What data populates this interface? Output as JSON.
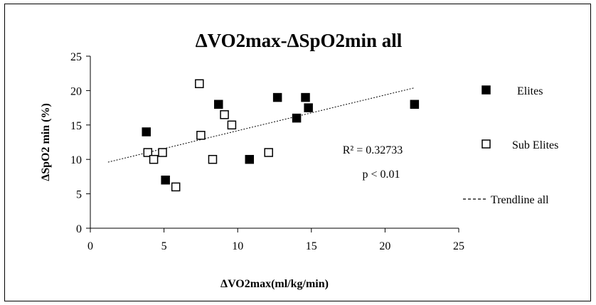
{
  "chart_data": {
    "type": "scatter",
    "title": "ΔVO2max-ΔSpO2min all",
    "xlabel": "ΔVO2max(ml/kg/min)",
    "ylabel": "ΔSpO2 min (%)",
    "xlim": [
      0,
      25
    ],
    "ylim": [
      0,
      25
    ],
    "xticks": [
      "0",
      "5",
      "10",
      "15",
      "20",
      "25"
    ],
    "yticks": [
      "0",
      "5",
      "10",
      "15",
      "20",
      "25"
    ],
    "grid": false,
    "legend_position": "right",
    "series": [
      {
        "name": "Elites",
        "marker": "filled-square",
        "color": "#000000",
        "points": [
          {
            "x": 3.8,
            "y": 14
          },
          {
            "x": 5.1,
            "y": 7
          },
          {
            "x": 8.7,
            "y": 18
          },
          {
            "x": 10.8,
            "y": 10
          },
          {
            "x": 12.7,
            "y": 19
          },
          {
            "x": 14.0,
            "y": 16
          },
          {
            "x": 14.6,
            "y": 19
          },
          {
            "x": 14.8,
            "y": 17.5
          },
          {
            "x": 22.0,
            "y": 18
          }
        ]
      },
      {
        "name": "Sub Elites",
        "marker": "open-square",
        "color": "#000000",
        "points": [
          {
            "x": 3.9,
            "y": 11
          },
          {
            "x": 4.3,
            "y": 10
          },
          {
            "x": 4.9,
            "y": 11
          },
          {
            "x": 5.8,
            "y": 6
          },
          {
            "x": 7.4,
            "y": 21
          },
          {
            "x": 7.5,
            "y": 13.5
          },
          {
            "x": 8.3,
            "y": 10
          },
          {
            "x": 9.1,
            "y": 16.5
          },
          {
            "x": 9.6,
            "y": 15
          },
          {
            "x": 12.1,
            "y": 11
          }
        ]
      }
    ],
    "trendline": {
      "name": "Trendline all",
      "style": "dashed",
      "x": [
        1.2,
        22.0
      ],
      "y": [
        9.6,
        20.4
      ]
    },
    "annotations": [
      "R² = 0.32733",
      "p < 0.01"
    ]
  }
}
